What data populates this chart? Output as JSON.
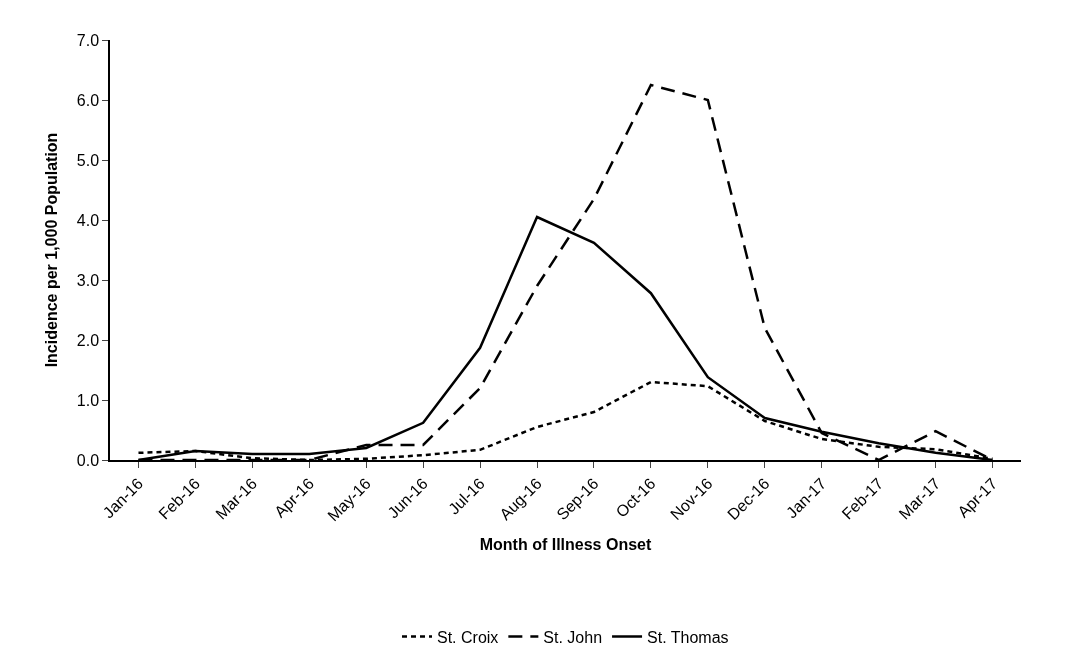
{
  "chart_data": {
    "type": "line",
    "xlabel": "Month of Illness Onset",
    "ylabel": "Incidence per 1,000 Population",
    "categories": [
      "Jan-16",
      "Feb-16",
      "Mar-16",
      "Apr-16",
      "May-16",
      "Jun-16",
      "Jul-16",
      "Aug-16",
      "Sep-16",
      "Oct-16",
      "Nov-16",
      "Dec-16",
      "Jan-17",
      "Feb-17",
      "Mar-17",
      "Apr-17"
    ],
    "series": [
      {
        "name": "St. Croix",
        "color": "#000000",
        "line_style": "dotted",
        "values": [
          0.12,
          0.15,
          0.03,
          0.0,
          0.02,
          0.08,
          0.17,
          0.55,
          0.8,
          1.3,
          1.23,
          0.65,
          0.35,
          0.22,
          0.18,
          0.02
        ]
      },
      {
        "name": "St. John",
        "color": "#000000",
        "line_style": "dashed",
        "values": [
          0.0,
          0.0,
          0.0,
          0.0,
          0.25,
          0.25,
          1.2,
          2.9,
          4.35,
          6.25,
          6.0,
          2.2,
          0.45,
          0.0,
          0.48,
          0.0
        ]
      },
      {
        "name": "St. Thomas",
        "color": "#000000",
        "line_style": "solid",
        "values": [
          0.0,
          0.15,
          0.1,
          0.1,
          0.2,
          0.62,
          1.87,
          4.05,
          3.62,
          2.78,
          1.38,
          0.7,
          0.47,
          0.28,
          0.12,
          0.0
        ]
      }
    ],
    "ylim": [
      0,
      7
    ],
    "yticks": [
      {
        "value": 0,
        "label": "0.0"
      },
      {
        "value": 1,
        "label": "1.0"
      },
      {
        "value": 2,
        "label": "2.0"
      },
      {
        "value": 3,
        "label": "3.0"
      },
      {
        "value": 4,
        "label": "4.0"
      },
      {
        "value": 5,
        "label": "5.0"
      },
      {
        "value": 6,
        "label": "6.0"
      },
      {
        "value": 7,
        "label": "7.0"
      }
    ],
    "legend": "bottom",
    "marker": "none"
  }
}
